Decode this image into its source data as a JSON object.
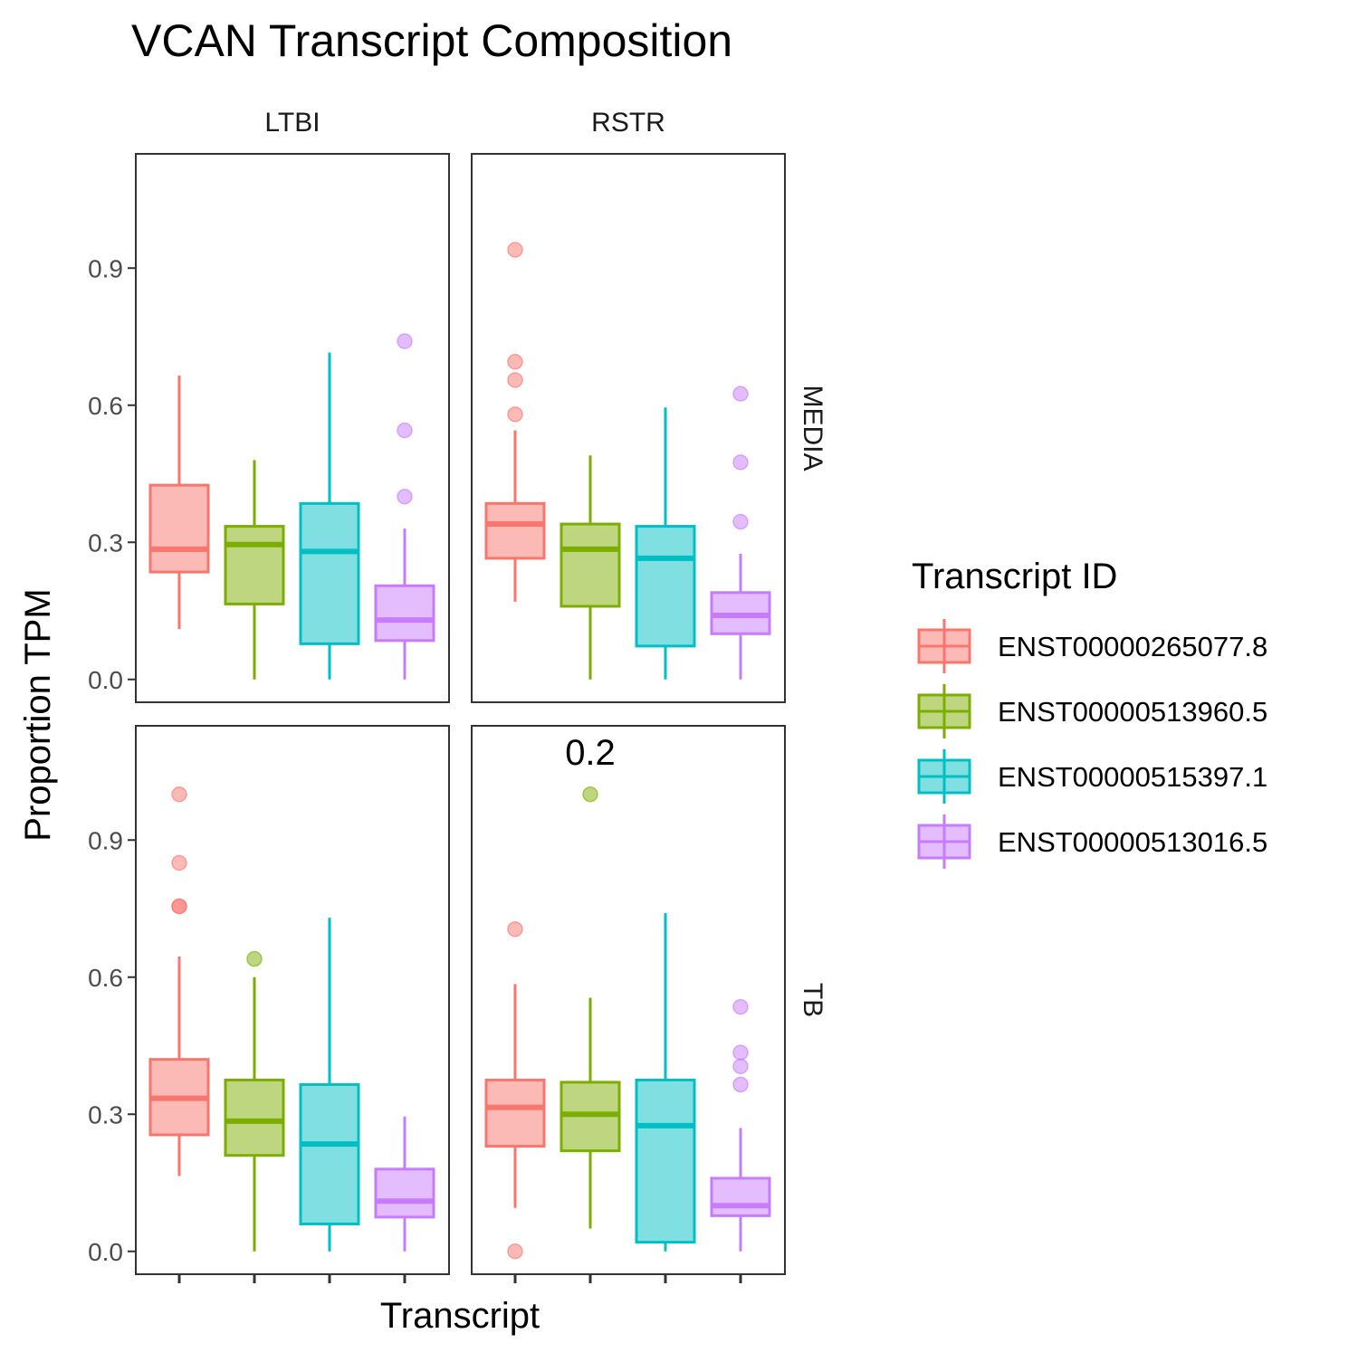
{
  "chart_data": {
    "type": "boxplot",
    "title": "VCAN Transcript Composition",
    "xlabel": "Transcript",
    "ylabel": "Proportion TPM",
    "ylim": [
      -0.05,
      1.15
    ],
    "yticks": [
      "0.0",
      "0.3",
      "0.6",
      "0.9"
    ],
    "ytick_values": [
      0.0,
      0.3,
      0.6,
      0.9
    ],
    "grid": false,
    "legend": {
      "title": "Transcript ID",
      "position": "right",
      "entries": [
        "ENST00000265077.8",
        "ENST00000513960.5",
        "ENST00000515397.1",
        "ENST00000513016.5"
      ]
    },
    "series": [
      {
        "name": "ENST00000265077.8",
        "color": "#F8766D"
      },
      {
        "name": "ENST00000513960.5",
        "color": "#7CAE00"
      },
      {
        "name": "ENST00000515397.1",
        "color": "#00BFC4"
      },
      {
        "name": "ENST00000513016.5",
        "color": "#C77CFF"
      }
    ],
    "facet_columns": [
      "LTBI",
      "RSTR"
    ],
    "facet_rows": [
      "MEDIA",
      "TB"
    ],
    "panels": [
      {
        "col": "LTBI",
        "row": "MEDIA",
        "annotation": "",
        "boxes": [
          {
            "lower_whisker": 0.11,
            "q1": 0.235,
            "median": 0.285,
            "q3": 0.425,
            "upper_whisker": 0.665,
            "outliers": []
          },
          {
            "lower_whisker": 0.0,
            "q1": 0.165,
            "median": 0.295,
            "q3": 0.335,
            "upper_whisker": 0.48,
            "outliers": []
          },
          {
            "lower_whisker": 0.0,
            "q1": 0.078,
            "median": 0.28,
            "q3": 0.385,
            "upper_whisker": 0.715,
            "outliers": []
          },
          {
            "lower_whisker": 0.0,
            "q1": 0.085,
            "median": 0.13,
            "q3": 0.205,
            "upper_whisker": 0.33,
            "outliers": [
              0.74,
              0.545,
              0.4
            ]
          }
        ]
      },
      {
        "col": "RSTR",
        "row": "MEDIA",
        "annotation": "",
        "boxes": [
          {
            "lower_whisker": 0.17,
            "q1": 0.265,
            "median": 0.34,
            "q3": 0.385,
            "upper_whisker": 0.545,
            "outliers": [
              0.94,
              0.695,
              0.655,
              0.58
            ]
          },
          {
            "lower_whisker": 0.0,
            "q1": 0.16,
            "median": 0.285,
            "q3": 0.34,
            "upper_whisker": 0.49,
            "outliers": []
          },
          {
            "lower_whisker": 0.0,
            "q1": 0.073,
            "median": 0.265,
            "q3": 0.335,
            "upper_whisker": 0.595,
            "outliers": []
          },
          {
            "lower_whisker": 0.0,
            "q1": 0.1,
            "median": 0.14,
            "q3": 0.19,
            "upper_whisker": 0.275,
            "outliers": [
              0.625,
              0.475,
              0.345
            ]
          }
        ]
      },
      {
        "col": "LTBI",
        "row": "TB",
        "annotation": "",
        "boxes": [
          {
            "lower_whisker": 0.165,
            "q1": 0.255,
            "median": 0.335,
            "q3": 0.42,
            "upper_whisker": 0.645,
            "outliers": [
              1.0,
              0.85,
              0.755,
              0.755
            ]
          },
          {
            "lower_whisker": 0.0,
            "q1": 0.21,
            "median": 0.285,
            "q3": 0.375,
            "upper_whisker": 0.6,
            "outliers": [
              0.64
            ]
          },
          {
            "lower_whisker": 0.0,
            "q1": 0.06,
            "median": 0.235,
            "q3": 0.365,
            "upper_whisker": 0.73,
            "outliers": []
          },
          {
            "lower_whisker": 0.0,
            "q1": 0.075,
            "median": 0.11,
            "q3": 0.18,
            "upper_whisker": 0.295,
            "outliers": []
          }
        ]
      },
      {
        "col": "RSTR",
        "row": "TB",
        "annotation": "0.2",
        "boxes": [
          {
            "lower_whisker": 0.095,
            "q1": 0.23,
            "median": 0.315,
            "q3": 0.375,
            "upper_whisker": 0.585,
            "outliers": [
              0.705,
              0.0
            ]
          },
          {
            "lower_whisker": 0.05,
            "q1": 0.22,
            "median": 0.3,
            "q3": 0.37,
            "upper_whisker": 0.555,
            "outliers": [
              1.0
            ]
          },
          {
            "lower_whisker": 0.0,
            "q1": 0.02,
            "median": 0.275,
            "q3": 0.375,
            "upper_whisker": 0.74,
            "outliers": []
          },
          {
            "lower_whisker": 0.0,
            "q1": 0.078,
            "median": 0.1,
            "q3": 0.16,
            "upper_whisker": 0.27,
            "outliers": [
              0.535,
              0.435,
              0.405,
              0.365
            ]
          }
        ]
      }
    ]
  }
}
